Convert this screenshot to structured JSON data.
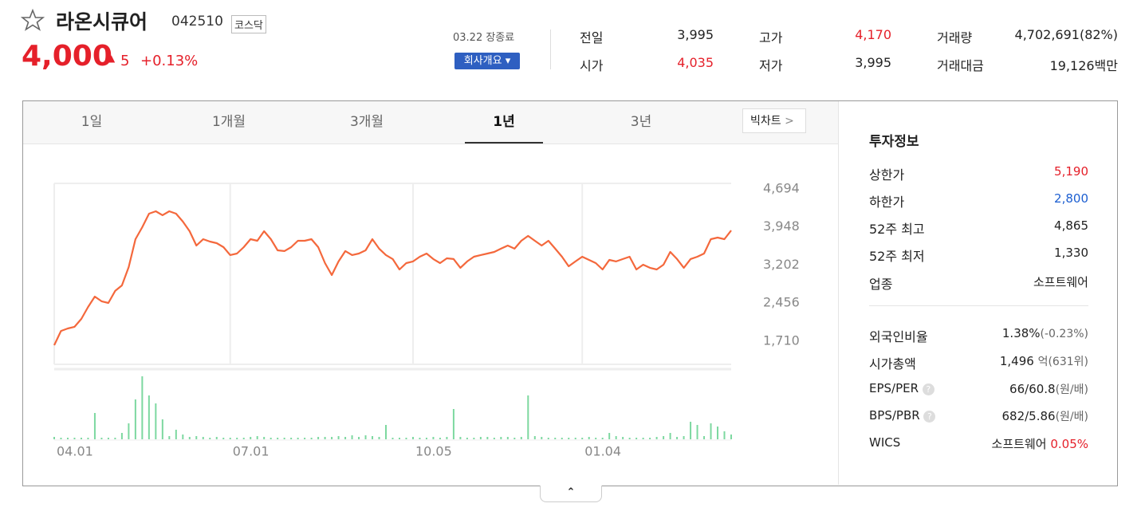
{
  "header": {
    "name": "라온시큐어",
    "code": "042510",
    "market": "코스닥",
    "price": "4,000",
    "change": "5",
    "change_pct": "+0.13%",
    "status": "03.22 장종료",
    "company_button": "회사개요"
  },
  "quote": [
    {
      "label": "전일",
      "value": "3,995"
    },
    {
      "label": "고가",
      "value": "4,170"
    },
    {
      "label": "거래량",
      "value": "4,702,691(82%)"
    },
    {
      "label": "시가",
      "value": "4,035"
    },
    {
      "label": "저가",
      "value": "3,995"
    },
    {
      "label": "거래대금",
      "value": "19,126백만"
    }
  ],
  "tabs": {
    "items": [
      "1일",
      "1개월",
      "3개월",
      "1년",
      "3년"
    ],
    "big_chart": "빅차트"
  },
  "info": {
    "title": "투자정보",
    "rows": [
      {
        "label": "상한가",
        "value": "5,190"
      },
      {
        "label": "하한가",
        "value": "2,800"
      },
      {
        "label": "52주 최고",
        "value": "4,865"
      },
      {
        "label": "52주 최저",
        "value": "1,330"
      },
      {
        "label": "업종",
        "value": "소프트웨어"
      }
    ],
    "rows2": [
      {
        "label": "외국인비율",
        "value": "1.38%",
        "sub": "(-0.23%)"
      },
      {
        "label": "시가총액",
        "value": "1,496",
        "sub": "억(631위)"
      },
      {
        "label": "EPS/PER",
        "value": "66/60.8",
        "sub": "(원/배)"
      },
      {
        "label": "BPS/PBR",
        "value": "682/5.86",
        "sub": "(원/배)"
      },
      {
        "label": "WICS",
        "value": "소프트웨어",
        "sub": "0.05%"
      }
    ]
  },
  "chart_data": {
    "type": "line",
    "color": "#f4683c",
    "volume_color": "#7dd8a0",
    "values": [
      1632,
      1912,
      1960,
      1992,
      2148,
      2382,
      2585,
      2492,
      2460,
      2695,
      2804,
      3163,
      3710,
      3944,
      4210,
      4257,
      4179,
      4257,
      4210,
      4054,
      3866,
      3585,
      3710,
      3663,
      3632,
      3554,
      3398,
      3429,
      3554,
      3710,
      3679,
      3866,
      3710,
      3491,
      3476,
      3554,
      3679,
      3679,
      3710,
      3554,
      3241,
      3007,
      3273,
      3476,
      3398,
      3429,
      3491,
      3710,
      3523,
      3398,
      3320,
      3116,
      3241,
      3273,
      3366,
      3429,
      3320,
      3241,
      3335,
      3320,
      3148,
      3273,
      3366,
      3398,
      3429,
      3460,
      3523,
      3585,
      3523,
      3679,
      3773,
      3679,
      3585,
      3679,
      3523,
      3366,
      3179,
      3273,
      3366,
      3304,
      3241,
      3116,
      3304,
      3273,
      3320,
      3366,
      3116,
      3210,
      3148,
      3116,
      3210,
      3460,
      3320,
      3148,
      3320,
      3366,
      3429,
      3710,
      3741,
      3710,
      3880
    ],
    "volumes": [
      3,
      2,
      2,
      2,
      2,
      2,
      33,
      2,
      2,
      2,
      8,
      20,
      50,
      79,
      55,
      45,
      25,
      4,
      12,
      6,
      3,
      4,
      3,
      2,
      3,
      2,
      2,
      2,
      2,
      3,
      4,
      3,
      2,
      2,
      2,
      2,
      2,
      2,
      2,
      3,
      3,
      3,
      4,
      3,
      5,
      3,
      5,
      4,
      3,
      18,
      2,
      2,
      2,
      3,
      2,
      2,
      3,
      2,
      3,
      38,
      3,
      2,
      2,
      3,
      3,
      2,
      3,
      3,
      2,
      3,
      55,
      4,
      3,
      2,
      2,
      2,
      2,
      2,
      2,
      3,
      2,
      2,
      8,
      4,
      3,
      2,
      2,
      2,
      2,
      3,
      4,
      8,
      3,
      4,
      22,
      18,
      4,
      20,
      16,
      10,
      6
    ],
    "ylim": [
      1257,
      4803
    ],
    "yticks": [
      {
        "value": 4694,
        "label": "4,694"
      },
      {
        "value": 3948,
        "label": "3,948"
      },
      {
        "value": 3202,
        "label": "3,202"
      },
      {
        "value": 2456,
        "label": "2,456"
      },
      {
        "value": 1710,
        "label": "1,710"
      }
    ],
    "xticks": [
      {
        "value": 0,
        "label": "04.01"
      },
      {
        "value": 26,
        "label": "07.01"
      },
      {
        "value": 53,
        "label": "10.05"
      },
      {
        "value": 78,
        "label": "01.04"
      }
    ]
  }
}
